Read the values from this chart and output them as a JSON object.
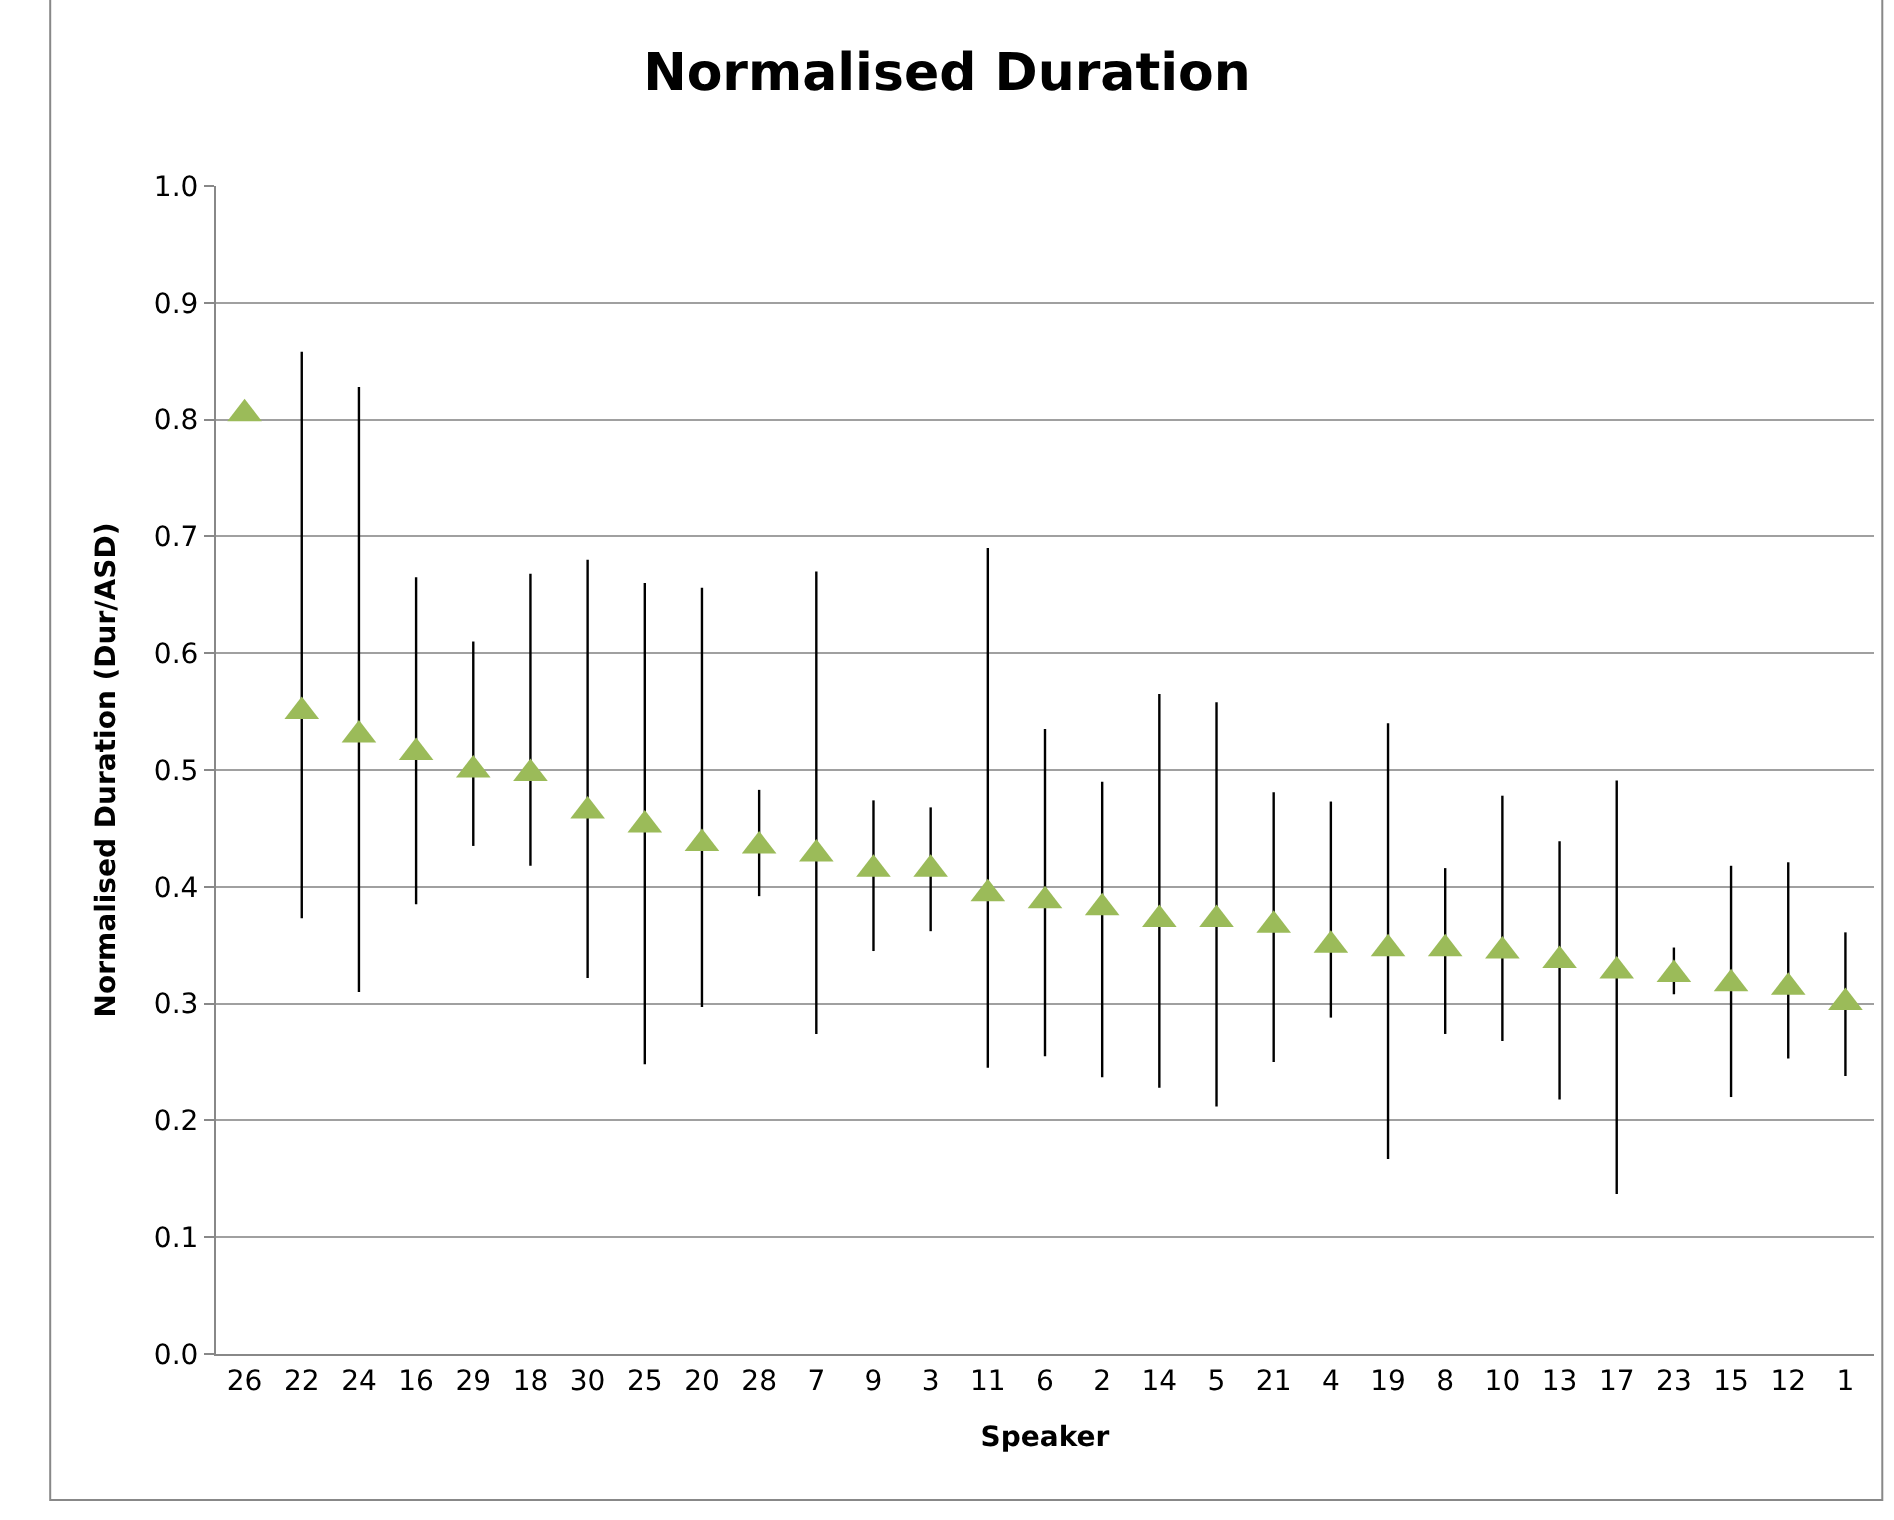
{
  "chart_data": {
    "type": "scatter",
    "title": "Normalised Duration",
    "xlabel": "Speaker",
    "ylabel": "Normalised Duration (Dur/ASD)",
    "categories": [
      "26",
      "22",
      "24",
      "16",
      "29",
      "18",
      "30",
      "25",
      "20",
      "28",
      "7",
      "9",
      "3",
      "11",
      "6",
      "2",
      "14",
      "5",
      "21",
      "4",
      "19",
      "8",
      "10",
      "13",
      "17",
      "23",
      "15",
      "12",
      "1"
    ],
    "series": [
      {
        "color": "#9bbb59",
        "values": [
          0.805,
          0.55,
          0.53,
          0.515,
          0.5,
          0.497,
          0.465,
          0.453,
          0.437,
          0.435,
          0.428,
          0.415,
          0.415,
          0.394,
          0.388,
          0.382,
          0.372,
          0.372,
          0.367,
          0.35,
          0.347,
          0.347,
          0.345,
          0.337,
          0.328,
          0.325,
          0.317,
          0.314,
          0.301
        ],
        "errors": [
          null,
          [
            0.373,
            0.858
          ],
          [
            0.31,
            0.828
          ],
          [
            0.385,
            0.665
          ],
          [
            0.435,
            0.61
          ],
          [
            0.418,
            0.668
          ],
          [
            0.322,
            0.68
          ],
          [
            0.248,
            0.66
          ],
          [
            0.297,
            0.656
          ],
          [
            0.392,
            0.483
          ],
          [
            0.274,
            0.67
          ],
          [
            0.345,
            0.474
          ],
          [
            0.362,
            0.468
          ],
          [
            0.245,
            0.69
          ],
          [
            0.255,
            0.535
          ],
          [
            0.237,
            0.49
          ],
          [
            0.228,
            0.565
          ],
          [
            0.212,
            0.558
          ],
          [
            0.25,
            0.481
          ],
          [
            0.288,
            0.473
          ],
          [
            0.167,
            0.54
          ],
          [
            0.274,
            0.416
          ],
          [
            0.268,
            0.478
          ],
          [
            0.218,
            0.439
          ],
          [
            0.137,
            0.491
          ],
          [
            0.308,
            0.348
          ],
          [
            0.22,
            0.418
          ],
          [
            0.253,
            0.421
          ],
          [
            0.238,
            0.361
          ]
        ]
      }
    ],
    "ylim": [
      0,
      1.0
    ],
    "yticks": [
      {
        "value": 0,
        "label": "0.0"
      },
      {
        "value": 0.1,
        "label": "0.1"
      },
      {
        "value": 0.2,
        "label": "0.2"
      },
      {
        "value": 0.3,
        "label": "0.3"
      },
      {
        "value": 0.4,
        "label": "0.4"
      },
      {
        "value": 0.5,
        "label": "0.5"
      },
      {
        "value": 0.6,
        "label": "0.6"
      },
      {
        "value": 0.7,
        "label": "0.7"
      },
      {
        "value": 0.8,
        "label": "0.8"
      },
      {
        "value": 0.9,
        "label": "0.9"
      },
      {
        "value": 1.0,
        "label": "1.0"
      }
    ],
    "grid": "y",
    "marker": "triangle",
    "legend": false
  }
}
